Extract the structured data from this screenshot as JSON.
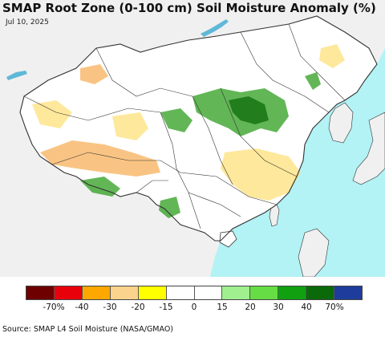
{
  "header": {
    "title": "SMAP Root Zone (0-100 cm) Soil Moisture Anomaly (%)",
    "date": "Jul 10, 2025"
  },
  "map": {
    "colors": {
      "land": "#ffffff",
      "ocean": "#b3f2f5",
      "outside_land": "#f0f0f0",
      "border": "#333333",
      "wet": "#2e9e1e",
      "wet_strong": "#0d6a0a",
      "dry_light": "#fde07a",
      "dry": "#f7b05a",
      "lake": "#5fb8d8"
    }
  },
  "legend": {
    "colors": [
      "#6e0000",
      "#e8000a",
      "#fda800",
      "#fcd38c",
      "#ffff00",
      "#ffffff",
      "#ffffff",
      "#a0f090",
      "#66dd44",
      "#10a010",
      "#0a6a0a",
      "#1d3c9c"
    ],
    "labels": [
      "-70%",
      "-40",
      "-30",
      "-20",
      "-15",
      "0",
      "15",
      "20",
      "30",
      "40",
      "70%"
    ]
  },
  "footer": {
    "source": "Source: SMAP L4 Soil Moisture (NASA/GMAO)"
  }
}
